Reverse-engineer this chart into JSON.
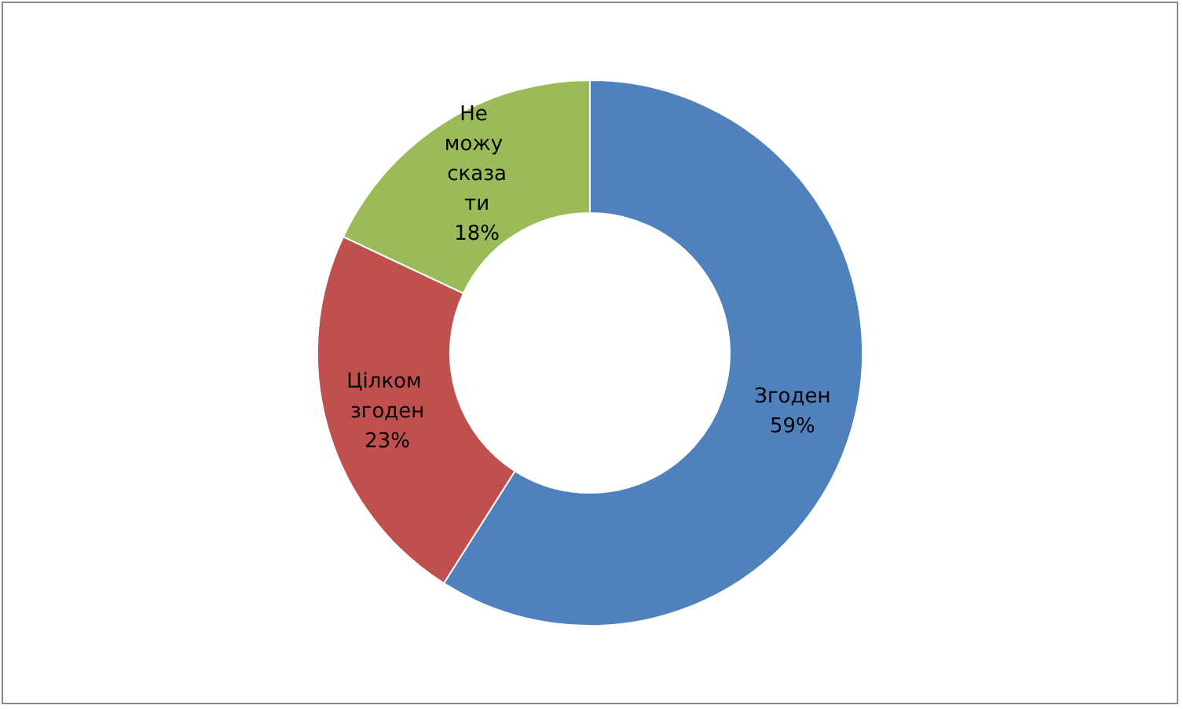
{
  "chart_data": {
    "type": "donut",
    "categories": [
      "Згоден",
      "Цілком згоден",
      "Не можу сказати"
    ],
    "values": [
      59,
      23,
      18
    ],
    "colors": [
      "#4f81bd",
      "#c0504d",
      "#9bbb59"
    ],
    "value_labels": [
      "59%",
      "23%",
      "18%"
    ],
    "legend": false
  }
}
